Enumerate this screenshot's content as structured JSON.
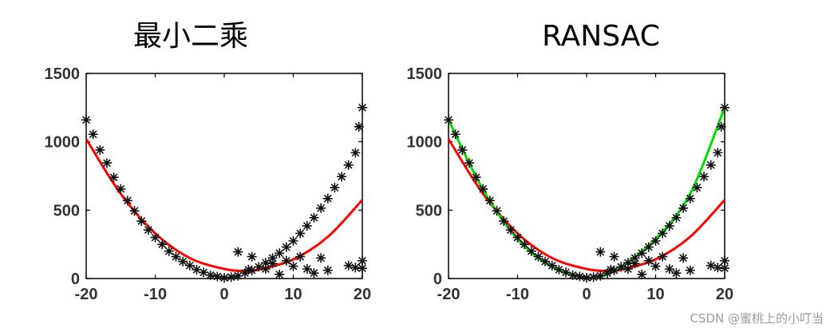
{
  "chart_data": [
    {
      "type": "scatter",
      "title": "最小二乘",
      "xlim": [
        -20,
        20
      ],
      "ylim": [
        0,
        1500
      ],
      "xticks": [
        "-20",
        "-10",
        "0",
        "10",
        "20"
      ],
      "yticks": [
        "0",
        "500",
        "1000",
        "1500"
      ],
      "grid": false,
      "points": [
        [
          -20,
          1160
        ],
        [
          -19,
          1055
        ],
        [
          -18,
          940
        ],
        [
          -17,
          845
        ],
        [
          -16,
          740
        ],
        [
          -15,
          655
        ],
        [
          -14,
          570
        ],
        [
          -13,
          495
        ],
        [
          -12,
          420
        ],
        [
          -11,
          355
        ],
        [
          -10,
          300
        ],
        [
          -9,
          250
        ],
        [
          -8,
          200
        ],
        [
          -7,
          160
        ],
        [
          -6,
          125
        ],
        [
          -5,
          95
        ],
        [
          -4,
          65
        ],
        [
          -3,
          45
        ],
        [
          -2,
          25
        ],
        [
          -1,
          15
        ],
        [
          0,
          5
        ],
        [
          1,
          10
        ],
        [
          2,
          20
        ],
        [
          3,
          40
        ],
        [
          4,
          60
        ],
        [
          5,
          85
        ],
        [
          6,
          115
        ],
        [
          7,
          150
        ],
        [
          8,
          185
        ],
        [
          9,
          230
        ],
        [
          10,
          275
        ],
        [
          11,
          330
        ],
        [
          12,
          385
        ],
        [
          13,
          445
        ],
        [
          14,
          515
        ],
        [
          15,
          585
        ],
        [
          16,
          665
        ],
        [
          17,
          745
        ],
        [
          18,
          830
        ],
        [
          19,
          920
        ],
        [
          19.5,
          1110
        ],
        [
          20,
          1250
        ],
        [
          2,
          195
        ],
        [
          4,
          160
        ],
        [
          6,
          70
        ],
        [
          7,
          110
        ],
        [
          8,
          30
        ],
        [
          9,
          130
        ],
        [
          10,
          90
        ],
        [
          11,
          160
        ],
        [
          12,
          70
        ],
        [
          13,
          40
        ],
        [
          14,
          150
        ],
        [
          15,
          60
        ],
        [
          18,
          95
        ],
        [
          19,
          80
        ],
        [
          20,
          130
        ],
        [
          20,
          75
        ],
        [
          3.5,
          65
        ]
      ],
      "series": [
        {
          "color": "#ff0000",
          "points": [
            [
              -20,
              1020
            ],
            [
              -15,
              620
            ],
            [
              -10,
              330
            ],
            [
              -5,
              150
            ],
            [
              0,
              70
            ],
            [
              3,
              55
            ],
            [
              5,
              65
            ],
            [
              10,
              140
            ],
            [
              15,
              305
            ],
            [
              20,
              575
            ]
          ]
        }
      ]
    },
    {
      "type": "scatter",
      "title": "RANSAC",
      "xlim": [
        -20,
        20
      ],
      "ylim": [
        0,
        1500
      ],
      "xticks": [
        "-20",
        "-10",
        "0",
        "10",
        "20"
      ],
      "yticks": [
        "0",
        "500",
        "1000",
        "1500"
      ],
      "grid": false,
      "points": [
        [
          -20,
          1160
        ],
        [
          -19,
          1055
        ],
        [
          -18,
          940
        ],
        [
          -17,
          845
        ],
        [
          -16,
          740
        ],
        [
          -15,
          655
        ],
        [
          -14,
          570
        ],
        [
          -13,
          495
        ],
        [
          -12,
          420
        ],
        [
          -11,
          355
        ],
        [
          -10,
          300
        ],
        [
          -9,
          250
        ],
        [
          -8,
          200
        ],
        [
          -7,
          160
        ],
        [
          -6,
          125
        ],
        [
          -5,
          95
        ],
        [
          -4,
          65
        ],
        [
          -3,
          45
        ],
        [
          -2,
          25
        ],
        [
          -1,
          15
        ],
        [
          0,
          5
        ],
        [
          1,
          10
        ],
        [
          2,
          20
        ],
        [
          3,
          40
        ],
        [
          4,
          60
        ],
        [
          5,
          85
        ],
        [
          6,
          115
        ],
        [
          7,
          150
        ],
        [
          8,
          185
        ],
        [
          9,
          230
        ],
        [
          10,
          275
        ],
        [
          11,
          330
        ],
        [
          12,
          385
        ],
        [
          13,
          445
        ],
        [
          14,
          515
        ],
        [
          15,
          585
        ],
        [
          16,
          665
        ],
        [
          17,
          745
        ],
        [
          18,
          830
        ],
        [
          19,
          920
        ],
        [
          19.5,
          1110
        ],
        [
          20,
          1250
        ],
        [
          2,
          195
        ],
        [
          4,
          160
        ],
        [
          6,
          70
        ],
        [
          7,
          110
        ],
        [
          8,
          30
        ],
        [
          9,
          130
        ],
        [
          10,
          90
        ],
        [
          11,
          160
        ],
        [
          12,
          70
        ],
        [
          13,
          40
        ],
        [
          14,
          150
        ],
        [
          15,
          60
        ],
        [
          18,
          95
        ],
        [
          19,
          80
        ],
        [
          20,
          130
        ],
        [
          20,
          75
        ],
        [
          3.5,
          65
        ]
      ],
      "series": [
        {
          "color": "#ff0000",
          "points": [
            [
              -20,
              1020
            ],
            [
              -15,
              620
            ],
            [
              -10,
              330
            ],
            [
              -5,
              150
            ],
            [
              0,
              70
            ],
            [
              3,
              55
            ],
            [
              5,
              65
            ],
            [
              10,
              140
            ],
            [
              15,
              305
            ],
            [
              20,
              575
            ]
          ]
        },
        {
          "color": "#00dd00",
          "points": [
            [
              -20,
              1160
            ],
            [
              -15,
              650
            ],
            [
              -10,
              290
            ],
            [
              -5,
              85
            ],
            [
              0,
              5
            ],
            [
              2,
              15
            ],
            [
              5,
              85
            ],
            [
              10,
              290
            ],
            [
              15,
              620
            ],
            [
              20,
              1250
            ]
          ]
        }
      ]
    }
  ],
  "watermark": "CSDN @蜜桃上的小叮当"
}
